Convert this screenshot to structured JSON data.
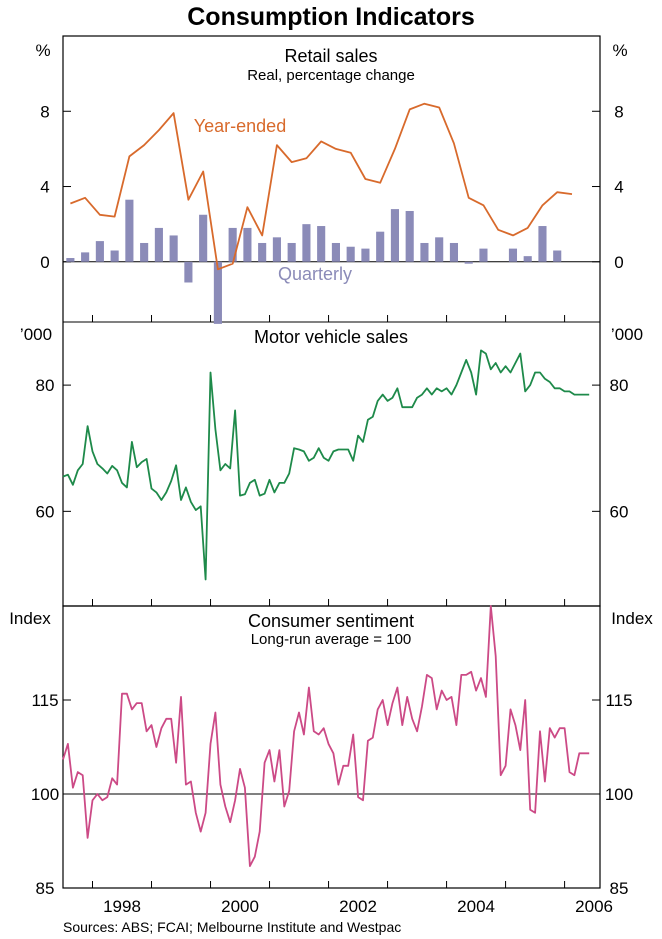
{
  "title": "Consumption Indicators",
  "source": "Sources: ABS; FCAI; Melbourne Institute and Westpac",
  "x_axis": {
    "start": 1997.5,
    "end": 2006.6,
    "tick_labels": [
      "1998",
      "2000",
      "2002",
      "2004",
      "2006"
    ]
  },
  "chart_data": [
    {
      "type": "bar",
      "title": "Retail sales",
      "subtitle": "Real, percentage change",
      "unit": "%",
      "ylim": [
        -3.2,
        12
      ],
      "yticks": [
        "0",
        "4",
        "8"
      ],
      "series": [
        {
          "name": "Quarterly",
          "type": "bar",
          "color": "#8b8bb8",
          "annotation": "Quarterly",
          "x": [
            1997.625,
            1997.875,
            1998.125,
            1998.375,
            1998.625,
            1998.875,
            1999.125,
            1999.375,
            1999.625,
            1999.875,
            2000.125,
            2000.375,
            2000.625,
            2000.875,
            2001.125,
            2001.375,
            2001.625,
            2001.875,
            2002.125,
            2002.375,
            2002.625,
            2002.875,
            2003.125,
            2003.375,
            2003.625,
            2003.875,
            2004.125,
            2004.375,
            2004.625,
            2004.875,
            2005.125,
            2005.375,
            2005.625,
            2005.875,
            2006.125,
            2006.375
          ],
          "values": [
            0.2,
            0.5,
            1.1,
            0.6,
            3.3,
            1.0,
            1.8,
            1.4,
            -1.1,
            2.5,
            -3.3,
            1.8,
            1.8,
            1.0,
            1.3,
            1.0,
            2.0,
            1.9,
            1.0,
            0.8,
            0.7,
            1.6,
            2.8,
            2.7,
            1.0,
            1.3,
            1.0,
            -0.1,
            0.7,
            0.0,
            0.7,
            0.3,
            1.9,
            0.6,
            0.0,
            0.0
          ]
        },
        {
          "name": "Year-ended",
          "type": "line",
          "color": "#d86a2c",
          "annotation": "Year-ended",
          "x": [
            1997.625,
            1997.875,
            1998.125,
            1998.375,
            1998.625,
            1998.875,
            1999.125,
            1999.375,
            1999.625,
            1999.875,
            2000.125,
            2000.375,
            2000.625,
            2000.875,
            2001.125,
            2001.375,
            2001.625,
            2001.875,
            2002.125,
            2002.375,
            2002.625,
            2002.875,
            2003.125,
            2003.375,
            2003.625,
            2003.875,
            2004.125,
            2004.375,
            2004.625,
            2004.875,
            2005.125,
            2005.375,
            2005.625,
            2005.875,
            2006.125
          ],
          "values": [
            3.1,
            3.4,
            2.5,
            2.4,
            5.6,
            6.2,
            7.0,
            7.9,
            3.3,
            4.8,
            -0.4,
            -0.1,
            2.9,
            1.4,
            6.2,
            5.3,
            5.5,
            6.4,
            6.0,
            5.8,
            4.4,
            4.2,
            6.0,
            8.1,
            8.4,
            8.2,
            6.3,
            3.4,
            3.0,
            1.7,
            1.4,
            1.8,
            3.0,
            3.7,
            3.6
          ]
        }
      ]
    },
    {
      "type": "line",
      "title": "Motor vehicle sales",
      "unit": "’000",
      "ylim": [
        45,
        90
      ],
      "yticks": [
        "60",
        "80"
      ],
      "series": [
        {
          "name": "Motor vehicle sales",
          "color": "#1e8a4a",
          "x": [
            1997.5,
            1997.583,
            1997.667,
            1997.75,
            1997.833,
            1997.917,
            1998.0,
            1998.083,
            1998.167,
            1998.25,
            1998.333,
            1998.417,
            1998.5,
            1998.583,
            1998.667,
            1998.75,
            1998.833,
            1998.917,
            1999.0,
            1999.083,
            1999.167,
            1999.25,
            1999.333,
            1999.417,
            1999.5,
            1999.583,
            1999.667,
            1999.75,
            1999.833,
            1999.917,
            2000.0,
            2000.083,
            2000.167,
            2000.25,
            2000.333,
            2000.417,
            2000.5,
            2000.583,
            2000.667,
            2000.75,
            2000.833,
            2000.917,
            2001.0,
            2001.083,
            2001.167,
            2001.25,
            2001.333,
            2001.417,
            2001.5,
            2001.583,
            2001.667,
            2001.75,
            2001.833,
            2001.917,
            2002.0,
            2002.083,
            2002.167,
            2002.25,
            2002.333,
            2002.417,
            2002.5,
            2002.583,
            2002.667,
            2002.75,
            2002.833,
            2002.917,
            2003.0,
            2003.083,
            2003.167,
            2003.25,
            2003.333,
            2003.417,
            2003.5,
            2003.583,
            2003.667,
            2003.75,
            2003.833,
            2003.917,
            2004.0,
            2004.083,
            2004.167,
            2004.25,
            2004.333,
            2004.417,
            2004.5,
            2004.583,
            2004.667,
            2004.75,
            2004.833,
            2004.917,
            2005.0,
            2005.083,
            2005.167,
            2005.25,
            2005.333,
            2005.417,
            2005.5,
            2005.583,
            2005.667,
            2005.75,
            2005.833,
            2005.917,
            2006.0,
            2006.083,
            2006.167,
            2006.25,
            2006.333,
            2006.417
          ],
          "values": [
            65.5,
            65.8,
            64.2,
            66.5,
            67.5,
            73.5,
            69.5,
            67.5,
            66.8,
            66.0,
            67.2,
            66.5,
            64.5,
            63.8,
            71.0,
            67.0,
            67.8,
            68.3,
            63.6,
            63.0,
            61.8,
            63.0,
            64.8,
            67.3,
            61.8,
            63.8,
            61.5,
            60.2,
            60.8,
            49.2,
            82.0,
            73.0,
            66.5,
            67.5,
            66.8,
            76.0,
            62.5,
            62.7,
            64.5,
            65.0,
            62.5,
            62.8,
            65.0,
            63.0,
            64.5,
            64.5,
            66.0,
            70.0,
            69.8,
            69.5,
            68.0,
            68.5,
            70.0,
            68.5,
            68.0,
            69.5,
            69.8,
            69.8,
            69.8,
            68.0,
            72.0,
            71.0,
            74.5,
            75.0,
            77.5,
            78.5,
            77.5,
            78.0,
            79.5,
            76.5,
            76.5,
            76.5,
            78.0,
            78.5,
            79.5,
            78.5,
            79.5,
            79.0,
            79.5,
            78.5,
            80.0,
            82.0,
            84.0,
            82.0,
            78.5,
            85.5,
            85.0,
            82.5,
            83.5,
            82.0,
            83.0,
            82.0,
            83.5,
            85.0,
            79.0,
            80.0,
            82.0,
            82.0,
            81.0,
            80.5,
            79.5,
            79.5,
            79.0,
            79.0,
            78.5,
            78.5,
            78.5,
            78.5
          ]
        }
      ]
    },
    {
      "type": "line",
      "title": "Consumer sentiment",
      "subtitle": "Long-run average = 100",
      "unit": "Index",
      "ylim": [
        85,
        130
      ],
      "yticks": [
        "85",
        "100",
        "115"
      ],
      "series": [
        {
          "name": "Consumer sentiment",
          "color": "#cc4a86",
          "x": [
            1997.5,
            1997.583,
            1997.667,
            1997.75,
            1997.833,
            1997.917,
            1998.0,
            1998.083,
            1998.167,
            1998.25,
            1998.333,
            1998.417,
            1998.5,
            1998.583,
            1998.667,
            1998.75,
            1998.833,
            1998.917,
            1999.0,
            1999.083,
            1999.167,
            1999.25,
            1999.333,
            1999.417,
            1999.5,
            1999.583,
            1999.667,
            1999.75,
            1999.833,
            1999.917,
            2000.0,
            2000.083,
            2000.167,
            2000.25,
            2000.333,
            2000.417,
            2000.5,
            2000.583,
            2000.667,
            2000.75,
            2000.833,
            2000.917,
            2001.0,
            2001.083,
            2001.167,
            2001.25,
            2001.333,
            2001.417,
            2001.5,
            2001.583,
            2001.667,
            2001.75,
            2001.833,
            2001.917,
            2002.0,
            2002.083,
            2002.167,
            2002.25,
            2002.333,
            2002.417,
            2002.5,
            2002.583,
            2002.667,
            2002.75,
            2002.833,
            2002.917,
            2003.0,
            2003.083,
            2003.167,
            2003.25,
            2003.333,
            2003.417,
            2003.5,
            2003.583,
            2003.667,
            2003.75,
            2003.833,
            2003.917,
            2004.0,
            2004.083,
            2004.167,
            2004.25,
            2004.333,
            2004.417,
            2004.5,
            2004.583,
            2004.667,
            2004.75,
            2004.833,
            2004.917,
            2005.0,
            2005.083,
            2005.167,
            2005.25,
            2005.333,
            2005.417,
            2005.5,
            2005.583,
            2005.667,
            2005.75,
            2005.833,
            2005.917,
            2006.0,
            2006.083,
            2006.167,
            2006.25,
            2006.333,
            2006.417
          ],
          "values": [
            105.5,
            108,
            101,
            103.5,
            103,
            93,
            99,
            100,
            99,
            99.5,
            102.5,
            101.5,
            116,
            116,
            113.5,
            114.5,
            114.5,
            110,
            111,
            107.5,
            110.5,
            112,
            112,
            105,
            115.5,
            101.5,
            102,
            97,
            94,
            97,
            108,
            113,
            101.5,
            98,
            95.5,
            99,
            104,
            101,
            88.5,
            90,
            94,
            105,
            107,
            102,
            107,
            98,
            100.5,
            110,
            113,
            109.5,
            117,
            110,
            109.5,
            110.5,
            108,
            106.5,
            101.5,
            104.5,
            104.5,
            109.5,
            99.5,
            99,
            108.5,
            109,
            113.5,
            115,
            111,
            114.5,
            117,
            111,
            115.5,
            112,
            110,
            114,
            119,
            118.5,
            113.5,
            116.5,
            115,
            115.5,
            111,
            119,
            119,
            119.5,
            116.5,
            118.5,
            115.5,
            130,
            122,
            103,
            104.5,
            113.5,
            111,
            107,
            115,
            97.5,
            97,
            110,
            102,
            110.5,
            109,
            110.5,
            110.5,
            103.5,
            103,
            106.5,
            106.5,
            106.5
          ]
        }
      ]
    }
  ]
}
